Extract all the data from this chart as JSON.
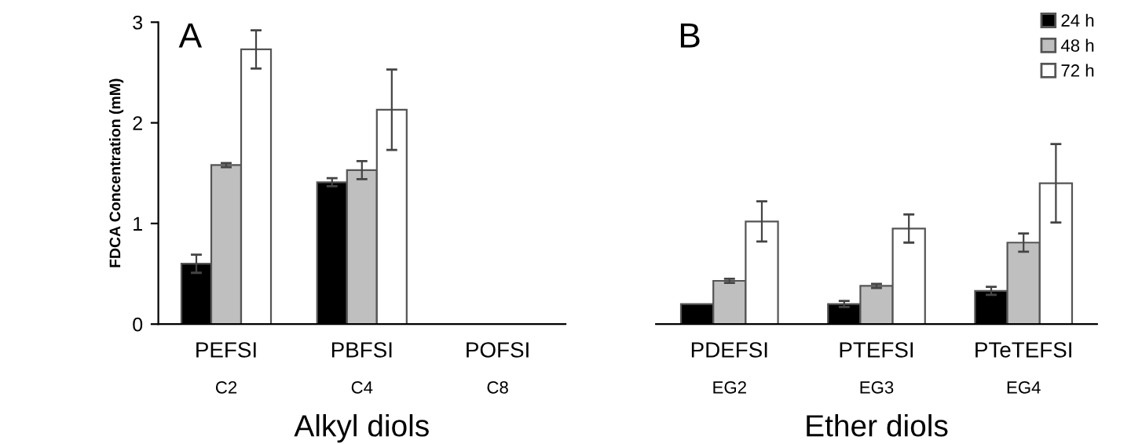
{
  "chart_data": [
    {
      "type": "bar",
      "title": "A",
      "ylabel": "FDCA Concentration (mM)",
      "xlabel": "Alkyl diols",
      "categories": [
        "PEFSI",
        "PBFSI",
        "POFSI"
      ],
      "annotations": [
        "C2",
        "C4",
        "C8"
      ],
      "series": [
        {
          "color": "#000000",
          "values": [
            0.6,
            1.41,
            null
          ],
          "errors": [
            0.09,
            0.04,
            null
          ]
        },
        {
          "color": "#bfbfbf",
          "values": [
            1.58,
            1.53,
            null
          ],
          "errors": [
            0.02,
            0.09,
            null
          ]
        },
        {
          "color": "#ffffff",
          "values": [
            2.73,
            2.13,
            null
          ],
          "errors": [
            0.19,
            0.4,
            null
          ]
        }
      ],
      "ylim": [
        0,
        3
      ],
      "yticks": [
        0,
        1,
        2,
        3
      ],
      "grid": false
    },
    {
      "type": "bar",
      "title": "B",
      "xlabel": "Ether diols",
      "categories": [
        "PDEFSI",
        "PTEFSI",
        "PTeTEFSI"
      ],
      "annotations": [
        "EG2",
        "EG3",
        "EG4"
      ],
      "series": [
        {
          "name": "24 h",
          "color": "#000000",
          "values": [
            0.2,
            0.2,
            0.33
          ],
          "errors": [
            null,
            0.03,
            0.04
          ]
        },
        {
          "name": "48 h",
          "color": "#bfbfbf",
          "values": [
            0.43,
            0.38,
            0.81
          ],
          "errors": [
            0.02,
            0.02,
            0.09
          ]
        },
        {
          "name": "72 h",
          "color": "#ffffff",
          "values": [
            1.02,
            0.95,
            1.4
          ],
          "errors": [
            0.2,
            0.14,
            0.39
          ]
        }
      ],
      "ylim": [
        0,
        3
      ],
      "tick_labels": "x",
      "grid": false,
      "legend": "top right"
    }
  ]
}
